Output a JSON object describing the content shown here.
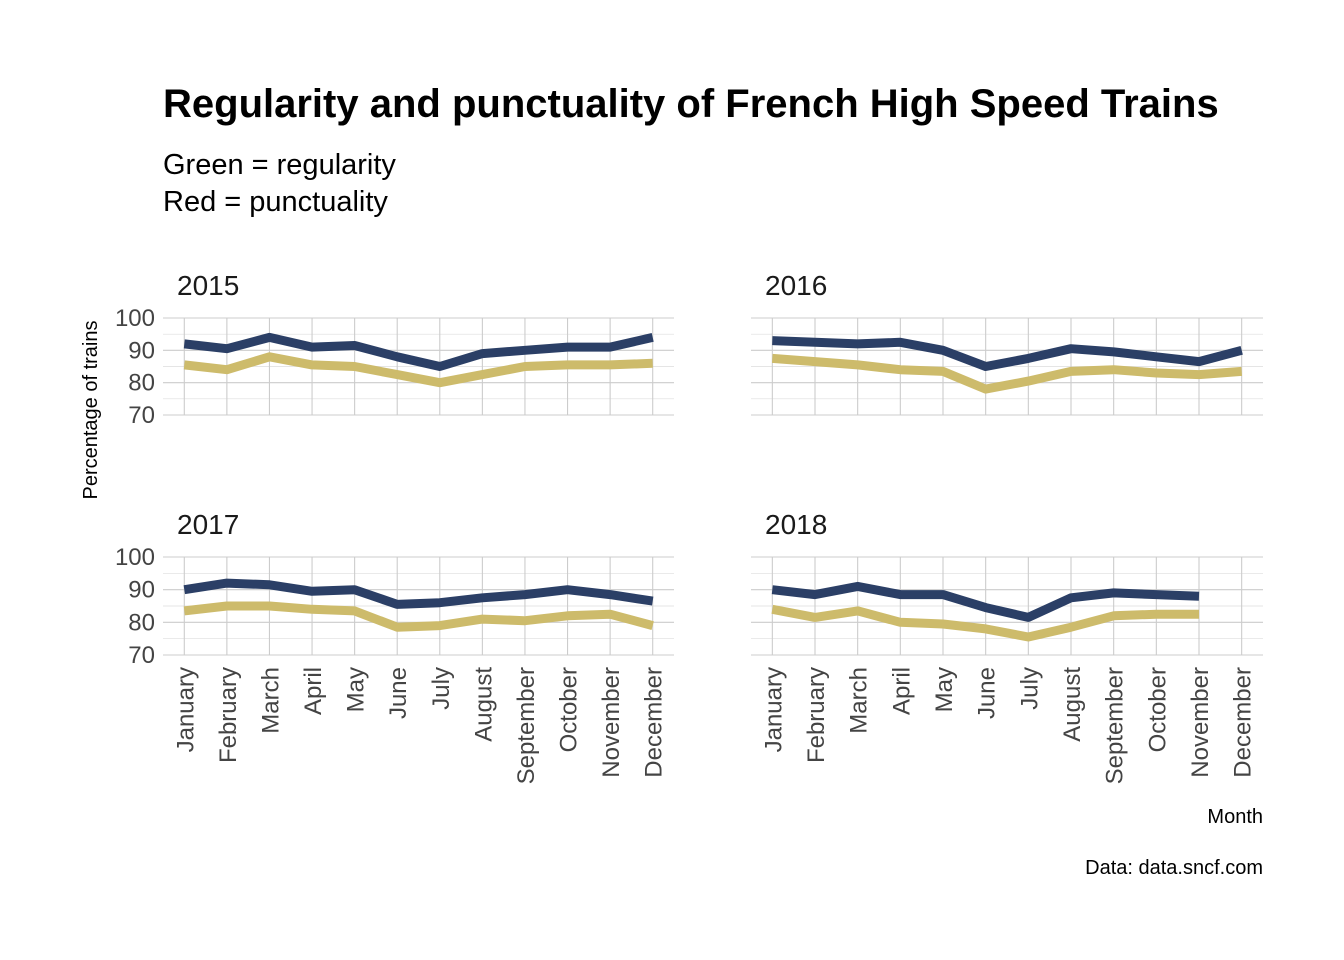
{
  "chart_data": {
    "type": "line",
    "title": "Regularity and punctuality of French High Speed Trains",
    "subtitle_lines": [
      "Green = regularity",
      "Red = punctuality"
    ],
    "xlabel": "Month",
    "ylabel": "Percentage of trains",
    "caption": "Data: data.sncf.com",
    "ylim": [
      70,
      100
    ],
    "yticks": [
      70,
      80,
      90,
      100
    ],
    "grid": true,
    "categories": [
      "January",
      "February",
      "March",
      "April",
      "May",
      "June",
      "July",
      "August",
      "September",
      "October",
      "November",
      "December"
    ],
    "series_colors": {
      "regularity": "#2b3f66",
      "punctuality": "#cdbb6b"
    },
    "panels": [
      {
        "label": "2015",
        "series": [
          {
            "key": "regularity",
            "values": [
              92,
              90.5,
              94,
              91,
              91.5,
              88,
              85,
              89,
              90,
              91,
              91,
              94
            ]
          },
          {
            "key": "punctuality",
            "values": [
              85.5,
              84,
              88,
              85.5,
              85,
              82.5,
              80,
              82.5,
              85,
              85.5,
              85.5,
              86
            ]
          }
        ]
      },
      {
        "label": "2016",
        "series": [
          {
            "key": "regularity",
            "values": [
              93,
              92.5,
              92,
              92.5,
              90,
              85,
              87.5,
              90.5,
              89.5,
              88,
              86.5,
              90
            ]
          },
          {
            "key": "punctuality",
            "values": [
              87.5,
              86.5,
              85.5,
              84,
              83.5,
              78,
              80.5,
              83.5,
              84,
              83,
              82.5,
              83.5
            ]
          }
        ]
      },
      {
        "label": "2017",
        "series": [
          {
            "key": "regularity",
            "values": [
              90,
              92,
              91.5,
              89.5,
              90,
              85.5,
              86,
              87.5,
              88.5,
              90,
              88.5,
              86.5
            ]
          },
          {
            "key": "punctuality",
            "values": [
              83.5,
              85,
              85,
              84,
              83.5,
              78.5,
              79,
              81,
              80.5,
              82,
              82.5,
              79
            ]
          }
        ]
      },
      {
        "label": "2018",
        "series": [
          {
            "key": "regularity",
            "values": [
              90,
              88.5,
              91,
              88.5,
              88.5,
              84.5,
              81.5,
              87.5,
              89,
              88.5,
              88,
              null
            ]
          },
          {
            "key": "punctuality",
            "values": [
              84,
              81.5,
              83.5,
              80,
              79.5,
              78,
              75.5,
              78.5,
              82,
              82.5,
              82.5,
              null
            ]
          }
        ]
      }
    ]
  }
}
